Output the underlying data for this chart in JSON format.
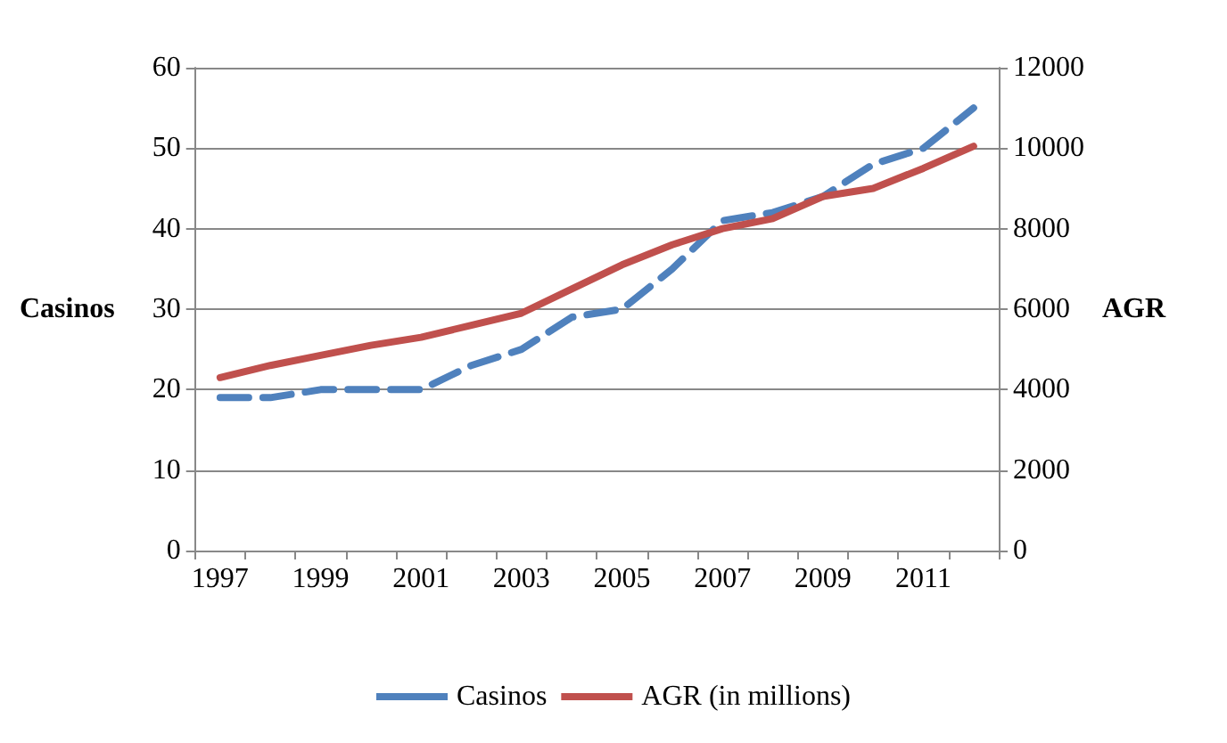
{
  "chart_data": {
    "type": "line",
    "ylabel": "Casinos",
    "y2label": "AGR",
    "categories": [
      "1997",
      null,
      "1999",
      null,
      "2001",
      null,
      "2003",
      null,
      "2005",
      null,
      "2007",
      null,
      "2009",
      null,
      "2011",
      null
    ],
    "series": [
      {
        "name": "Casinos",
        "color": "#4f81bd",
        "line_style": "dashed",
        "values": [
          19,
          19,
          20,
          20,
          20,
          23,
          25,
          29,
          30,
          35,
          41,
          42,
          44,
          48,
          50,
          55
        ]
      },
      {
        "name": "AGR (in millions)",
        "color": "#c0504d",
        "line_style": "solid",
        "axis": "y2",
        "values": [
          4300,
          4600,
          4850,
          5100,
          5300,
          5600,
          5900,
          6500,
          7100,
          7600,
          8000,
          8250,
          8800,
          9000,
          9500,
          10050
        ]
      }
    ],
    "ylim": [
      0,
      60
    ],
    "yticks": [
      0,
      10,
      20,
      30,
      40,
      50,
      60
    ],
    "y2lim": [
      0,
      12000
    ],
    "y2ticks": [
      0,
      2000,
      4000,
      6000,
      8000,
      10000,
      12000
    ],
    "grid": "y",
    "legend": "bottom",
    "marker": "none"
  }
}
